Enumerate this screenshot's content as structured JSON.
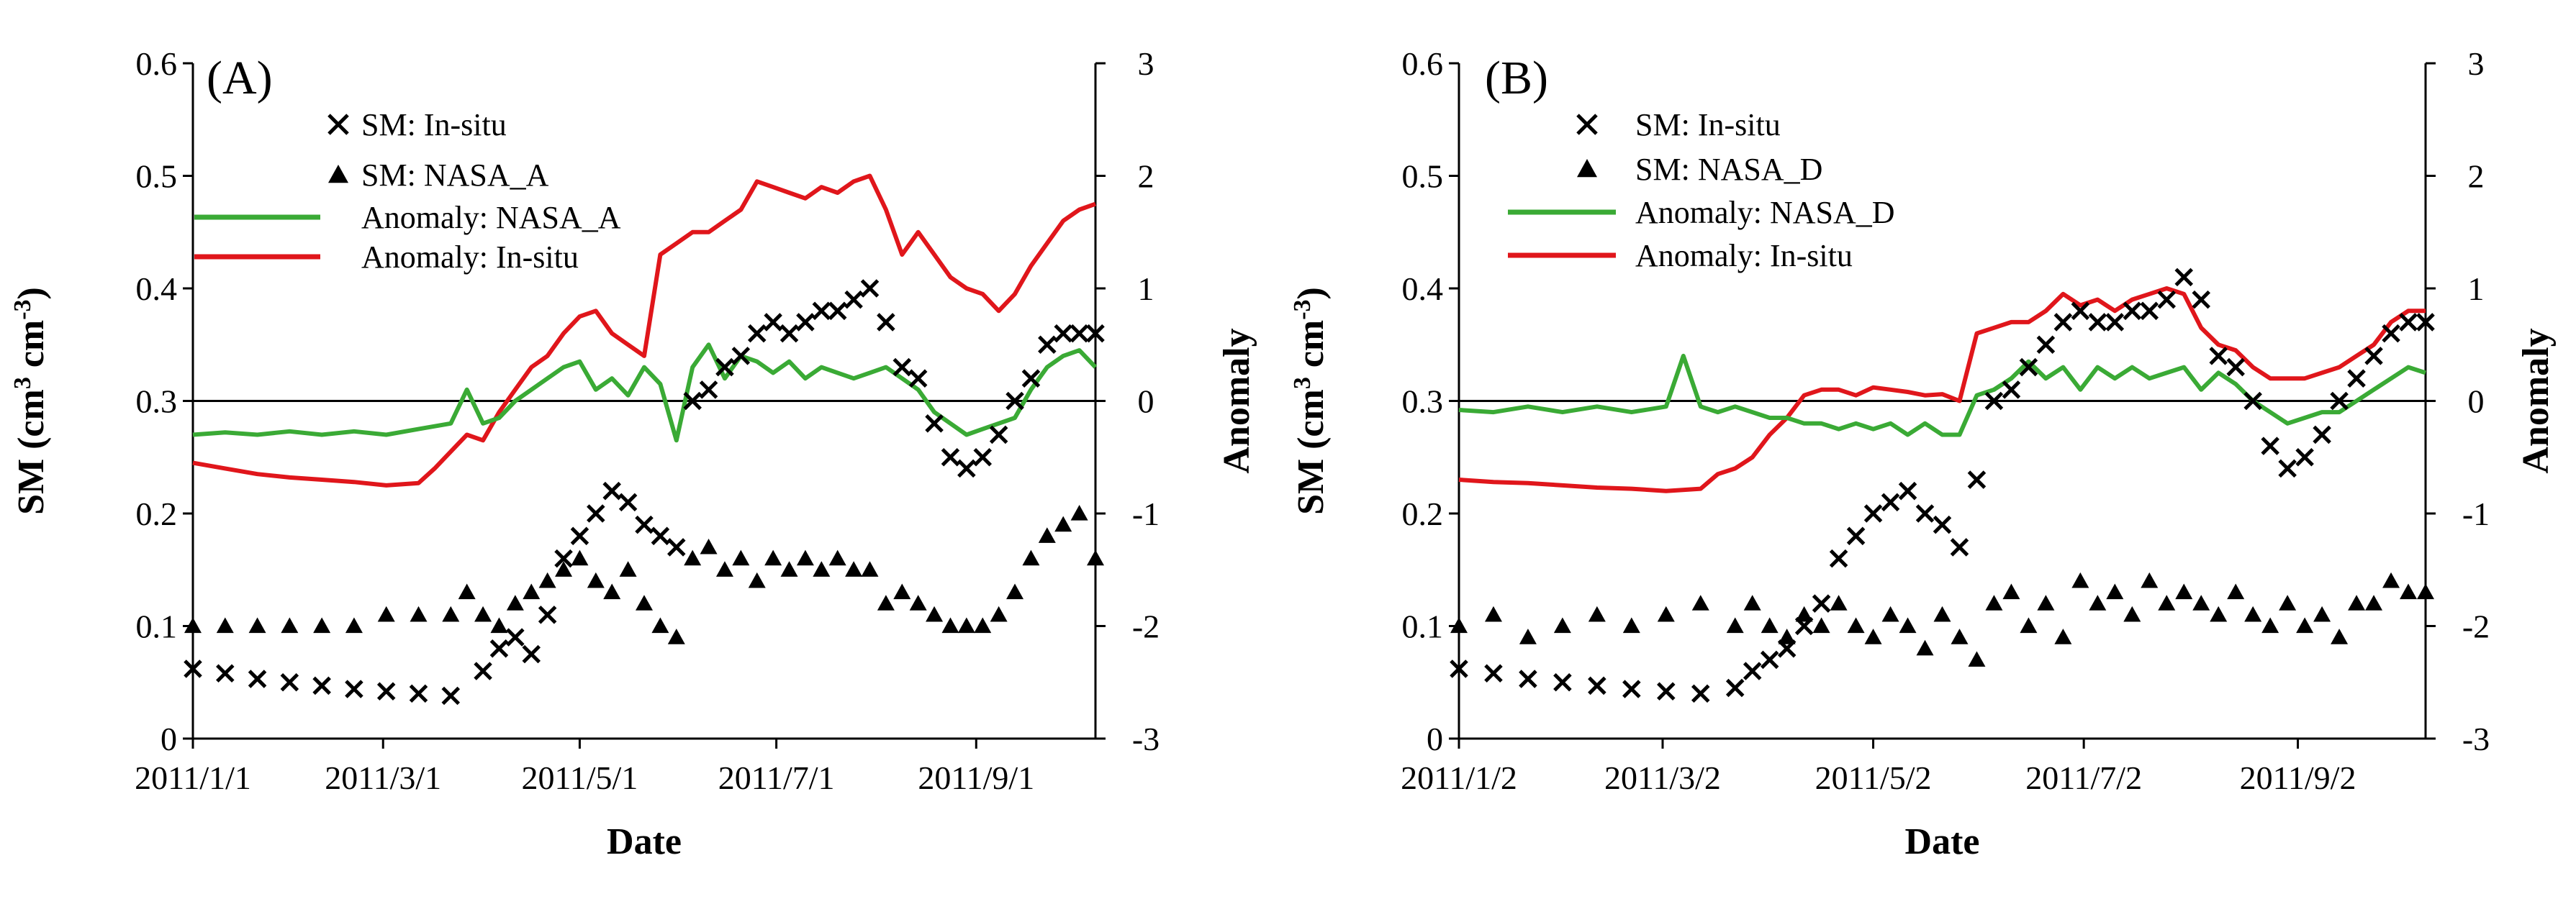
{
  "chart_data": [
    {
      "type": "line",
      "panel_label": "(A)",
      "xlabel": "Date",
      "ylabel_parts": [
        "SM (cm",
        "3",
        " cm",
        "-3",
        ")"
      ],
      "y2label": "Anomaly",
      "xticks": [
        {
          "label": "2011/1/1",
          "day": 0
        },
        {
          "label": "2011/3/1",
          "day": 59
        },
        {
          "label": "2011/5/1",
          "day": 120
        },
        {
          "label": "2011/7/1",
          "day": 181
        },
        {
          "label": "2011/9/1",
          "day": 243
        }
      ],
      "xlim": [
        0,
        280
      ],
      "ylim": [
        0,
        0.6
      ],
      "yticks": [
        "0",
        "0.1",
        "0.2",
        "0.3",
        "0.4",
        "0.5",
        "0.6"
      ],
      "y2lim": [
        -3,
        3
      ],
      "y2ticks": [
        "-3",
        "-2",
        "-1",
        "0",
        "1",
        "2",
        "3"
      ],
      "zero_line_anomaly": 0,
      "legend": [
        {
          "label": "SM: In-situ",
          "marker": "x"
        },
        {
          "label": "SM: NASA_A",
          "marker": "triangle"
        },
        {
          "label": "Anomaly: NASA_A",
          "line": "#3aaa35"
        },
        {
          "label": "Anomaly: In-situ",
          "line": "#e0161b"
        }
      ],
      "colors": {
        "insitu_anomaly": "#e0161b",
        "nasa_anomaly": "#3aaa35",
        "points": "#000000"
      },
      "series": {
        "insitu_sm": {
          "name": "SM: In-situ",
          "axis": "left",
          "x": [
            0,
            10,
            20,
            30,
            40,
            50,
            60,
            70,
            80,
            90,
            95,
            100,
            105,
            110,
            115,
            120,
            125,
            130,
            135,
            140,
            145,
            150,
            155,
            160,
            165,
            170,
            175,
            180,
            185,
            190,
            195,
            200,
            205,
            210,
            215,
            220,
            225,
            230,
            235,
            240,
            245,
            250,
            255,
            260,
            265,
            270,
            275,
            280
          ],
          "y": [
            0.062,
            0.058,
            0.053,
            0.05,
            0.047,
            0.044,
            0.042,
            0.04,
            0.038,
            0.06,
            0.08,
            0.09,
            0.075,
            0.11,
            0.16,
            0.18,
            0.2,
            0.22,
            0.21,
            0.19,
            0.18,
            0.17,
            0.3,
            0.31,
            0.33,
            0.34,
            0.36,
            0.37,
            0.36,
            0.37,
            0.38,
            0.38,
            0.39,
            0.4,
            0.37,
            0.33,
            0.32,
            0.28,
            0.25,
            0.24,
            0.25,
            0.27,
            0.3,
            0.32,
            0.35,
            0.36,
            0.36,
            0.36
          ]
        },
        "nasa_sm": {
          "name": "SM: NASA_A",
          "axis": "left",
          "x": [
            0,
            10,
            20,
            30,
            40,
            50,
            60,
            70,
            80,
            85,
            90,
            95,
            100,
            105,
            110,
            115,
            120,
            125,
            130,
            135,
            140,
            145,
            150,
            155,
            160,
            165,
            170,
            175,
            180,
            185,
            190,
            195,
            200,
            205,
            210,
            215,
            220,
            225,
            230,
            235,
            240,
            245,
            250,
            255,
            260,
            265,
            270,
            275,
            280
          ],
          "y": [
            0.1,
            0.1,
            0.1,
            0.1,
            0.1,
            0.1,
            0.11,
            0.11,
            0.11,
            0.13,
            0.11,
            0.1,
            0.12,
            0.13,
            0.14,
            0.15,
            0.16,
            0.14,
            0.13,
            0.15,
            0.12,
            0.1,
            0.09,
            0.16,
            0.17,
            0.15,
            0.16,
            0.14,
            0.16,
            0.15,
            0.16,
            0.15,
            0.16,
            0.15,
            0.15,
            0.12,
            0.13,
            0.12,
            0.11,
            0.1,
            0.1,
            0.1,
            0.11,
            0.13,
            0.16,
            0.18,
            0.19,
            0.2,
            0.16
          ]
        },
        "insitu_anomaly": {
          "name": "Anomaly: In-situ",
          "axis": "right",
          "x": [
            0,
            10,
            20,
            30,
            40,
            50,
            60,
            70,
            75,
            80,
            85,
            90,
            95,
            100,
            105,
            110,
            115,
            120,
            125,
            130,
            135,
            140,
            145,
            150,
            155,
            160,
            165,
            170,
            175,
            180,
            185,
            190,
            195,
            200,
            205,
            210,
            215,
            220,
            225,
            230,
            235,
            240,
            245,
            250,
            255,
            260,
            265,
            270,
            275,
            280
          ],
          "y": [
            -0.55,
            -0.6,
            -0.65,
            -0.68,
            -0.7,
            -0.72,
            -0.75,
            -0.73,
            -0.6,
            -0.45,
            -0.3,
            -0.35,
            -0.1,
            0.1,
            0.3,
            0.4,
            0.6,
            0.75,
            0.8,
            0.6,
            0.5,
            0.4,
            1.3,
            1.4,
            1.5,
            1.5,
            1.6,
            1.7,
            1.95,
            1.9,
            1.85,
            1.8,
            1.9,
            1.85,
            1.95,
            2.0,
            1.7,
            1.3,
            1.5,
            1.3,
            1.1,
            1.0,
            0.95,
            0.8,
            0.95,
            1.2,
            1.4,
            1.6,
            1.7,
            1.75
          ]
        },
        "nasa_anomaly": {
          "name": "Anomaly: NASA_A",
          "axis": "right",
          "x": [
            0,
            10,
            20,
            30,
            40,
            50,
            60,
            70,
            80,
            85,
            90,
            95,
            100,
            105,
            110,
            115,
            120,
            125,
            130,
            135,
            140,
            145,
            150,
            155,
            160,
            165,
            170,
            175,
            180,
            185,
            190,
            195,
            200,
            205,
            210,
            215,
            220,
            225,
            230,
            235,
            240,
            245,
            250,
            255,
            260,
            265,
            270,
            275,
            280
          ],
          "y": [
            -0.3,
            -0.28,
            -0.3,
            -0.27,
            -0.3,
            -0.27,
            -0.3,
            -0.25,
            -0.2,
            0.1,
            -0.2,
            -0.15,
            0.0,
            0.1,
            0.2,
            0.3,
            0.35,
            0.1,
            0.2,
            0.05,
            0.3,
            0.15,
            -0.35,
            0.3,
            0.5,
            0.2,
            0.4,
            0.35,
            0.25,
            0.35,
            0.2,
            0.3,
            0.25,
            0.2,
            0.25,
            0.3,
            0.2,
            0.1,
            -0.1,
            -0.2,
            -0.3,
            -0.25,
            -0.2,
            -0.15,
            0.1,
            0.3,
            0.4,
            0.45,
            0.3
          ]
        }
      }
    },
    {
      "type": "line",
      "panel_label": "(B)",
      "xlabel": "Date",
      "ylabel_parts": [
        "SM (cm",
        "3",
        " cm",
        "-3",
        ")"
      ],
      "y2label": "Anomaly",
      "xticks": [
        {
          "label": "2011/1/2",
          "day": 0
        },
        {
          "label": "2011/3/2",
          "day": 59
        },
        {
          "label": "2011/5/2",
          "day": 120
        },
        {
          "label": "2011/7/2",
          "day": 181
        },
        {
          "label": "2011/9/2",
          "day": 243
        }
      ],
      "xlim": [
        0,
        280
      ],
      "ylim": [
        0,
        0.6
      ],
      "yticks": [
        "0",
        "0.1",
        "0.2",
        "0.3",
        "0.4",
        "0.5",
        "0.6"
      ],
      "y2lim": [
        -3,
        3
      ],
      "y2ticks": [
        "-3",
        "-2",
        "-1",
        "0",
        "1",
        "2",
        "3"
      ],
      "zero_line_anomaly": 0,
      "legend": [
        {
          "label": "SM: In-situ",
          "marker": "x"
        },
        {
          "label": "SM: NASA_D",
          "marker": "triangle"
        },
        {
          "label": "Anomaly: NASA_D",
          "line": "#3aaa35"
        },
        {
          "label": "Anomaly: In-situ",
          "line": "#e0161b"
        }
      ],
      "colors": {
        "insitu_anomaly": "#e0161b",
        "nasa_anomaly": "#3aaa35",
        "points": "#000000"
      },
      "series": {
        "insitu_sm": {
          "name": "SM: In-situ",
          "axis": "left",
          "x": [
            0,
            10,
            20,
            30,
            40,
            50,
            60,
            70,
            80,
            85,
            90,
            95,
            100,
            105,
            110,
            115,
            120,
            125,
            130,
            135,
            140,
            145,
            150,
            155,
            160,
            165,
            170,
            175,
            180,
            185,
            190,
            195,
            200,
            205,
            210,
            215,
            220,
            225,
            230,
            235,
            240,
            245,
            250,
            255,
            260,
            265,
            270,
            275,
            280
          ],
          "y": [
            0.062,
            0.058,
            0.053,
            0.05,
            0.047,
            0.044,
            0.042,
            0.04,
            0.045,
            0.06,
            0.07,
            0.08,
            0.1,
            0.12,
            0.16,
            0.18,
            0.2,
            0.21,
            0.22,
            0.2,
            0.19,
            0.17,
            0.23,
            0.3,
            0.31,
            0.33,
            0.35,
            0.37,
            0.38,
            0.37,
            0.37,
            0.38,
            0.38,
            0.39,
            0.41,
            0.39,
            0.34,
            0.33,
            0.3,
            0.26,
            0.24,
            0.25,
            0.27,
            0.3,
            0.32,
            0.34,
            0.36,
            0.37,
            0.37
          ]
        },
        "nasa_sm": {
          "name": "SM: NASA_D",
          "axis": "left",
          "x": [
            0,
            10,
            20,
            30,
            40,
            50,
            60,
            70,
            80,
            85,
            90,
            95,
            100,
            105,
            110,
            115,
            120,
            125,
            130,
            135,
            140,
            145,
            150,
            155,
            160,
            165,
            170,
            175,
            180,
            185,
            190,
            195,
            200,
            205,
            210,
            215,
            220,
            225,
            230,
            235,
            240,
            245,
            250,
            255,
            260,
            265,
            270,
            275,
            280
          ],
          "y": [
            0.1,
            0.11,
            0.09,
            0.1,
            0.11,
            0.1,
            0.11,
            0.12,
            0.1,
            0.12,
            0.1,
            0.09,
            0.11,
            0.1,
            0.12,
            0.1,
            0.09,
            0.11,
            0.1,
            0.08,
            0.11,
            0.09,
            0.07,
            0.12,
            0.13,
            0.1,
            0.12,
            0.09,
            0.14,
            0.12,
            0.13,
            0.11,
            0.14,
            0.12,
            0.13,
            0.12,
            0.11,
            0.13,
            0.11,
            0.1,
            0.12,
            0.1,
            0.11,
            0.09,
            0.12,
            0.12,
            0.14,
            0.13,
            0.13
          ]
        },
        "insitu_anomaly": {
          "name": "Anomaly: In-situ",
          "axis": "right",
          "x": [
            0,
            10,
            20,
            30,
            40,
            50,
            60,
            70,
            75,
            80,
            85,
            90,
            95,
            100,
            105,
            110,
            115,
            120,
            125,
            130,
            135,
            140,
            145,
            150,
            155,
            160,
            165,
            170,
            175,
            180,
            185,
            190,
            195,
            200,
            205,
            210,
            215,
            220,
            225,
            230,
            235,
            240,
            245,
            250,
            255,
            260,
            265,
            270,
            275,
            280
          ],
          "y": [
            -0.7,
            -0.72,
            -0.73,
            -0.75,
            -0.77,
            -0.78,
            -0.8,
            -0.78,
            -0.65,
            -0.6,
            -0.5,
            -0.3,
            -0.15,
            0.05,
            0.1,
            0.1,
            0.05,
            0.12,
            0.1,
            0.08,
            0.05,
            0.06,
            0.0,
            0.6,
            0.65,
            0.7,
            0.7,
            0.8,
            0.95,
            0.85,
            0.9,
            0.8,
            0.9,
            0.95,
            1.0,
            0.95,
            0.65,
            0.5,
            0.45,
            0.3,
            0.2,
            0.2,
            0.2,
            0.25,
            0.3,
            0.4,
            0.5,
            0.7,
            0.8,
            0.8
          ]
        },
        "nasa_anomaly": {
          "name": "Anomaly: NASA_D",
          "axis": "right",
          "x": [
            0,
            10,
            20,
            30,
            40,
            50,
            60,
            65,
            70,
            75,
            80,
            85,
            90,
            95,
            100,
            105,
            110,
            115,
            120,
            125,
            130,
            135,
            140,
            145,
            150,
            155,
            160,
            165,
            170,
            175,
            180,
            185,
            190,
            195,
            200,
            205,
            210,
            215,
            220,
            225,
            230,
            235,
            240,
            245,
            250,
            255,
            260,
            265,
            270,
            275,
            280
          ],
          "y": [
            -0.08,
            -0.1,
            -0.05,
            -0.1,
            -0.05,
            -0.1,
            -0.05,
            0.4,
            -0.05,
            -0.1,
            -0.05,
            -0.1,
            -0.15,
            -0.15,
            -0.2,
            -0.2,
            -0.25,
            -0.2,
            -0.25,
            -0.2,
            -0.3,
            -0.2,
            -0.3,
            -0.3,
            0.05,
            0.1,
            0.2,
            0.35,
            0.2,
            0.3,
            0.1,
            0.3,
            0.2,
            0.3,
            0.2,
            0.25,
            0.3,
            0.1,
            0.25,
            0.15,
            0.0,
            -0.1,
            -0.2,
            -0.15,
            -0.1,
            -0.1,
            0.0,
            0.1,
            0.2,
            0.3,
            0.25
          ]
        }
      }
    }
  ]
}
